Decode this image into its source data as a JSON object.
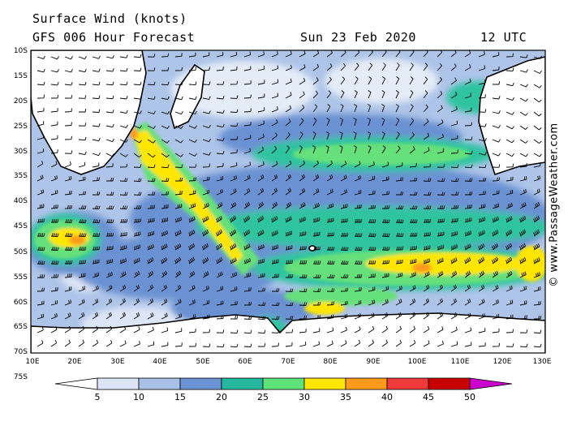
{
  "header": {
    "title": "Surface Wind (knots)",
    "model": "GFS 006 Hour Forecast",
    "date": "Sun 23 Feb 2020",
    "time": "12 UTC"
  },
  "credit": "© www.PassageWeather.com",
  "lat_labels": [
    "10S",
    "15S",
    "20S",
    "25S",
    "30S",
    "35S",
    "40S",
    "45S",
    "50S",
    "55S",
    "60S",
    "65S",
    "70S",
    "75S"
  ],
  "lon_labels": [
    "10E",
    "20E",
    "30E",
    "40E",
    "50E",
    "60E",
    "70E",
    "80E",
    "90E",
    "100E",
    "110E",
    "120E",
    "130E"
  ],
  "colorbar": {
    "labels": [
      "5",
      "10",
      "15",
      "20",
      "25",
      "30",
      "35",
      "40",
      "45",
      "50"
    ],
    "colors": [
      "#ffffff",
      "#dde6f6",
      "#a9c1e6",
      "#6b92d2",
      "#26b89e",
      "#5fe27a",
      "#ffe600",
      "#ff9a1a",
      "#ee3a3a",
      "#c80000",
      "#cc00cc"
    ]
  },
  "map_colors": {
    "calm": "#e8eef8",
    "light": "#aec4e8",
    "moderate": "#6b92d2",
    "fresh": "#2ec4a0",
    "strong": "#66e07a",
    "gale": "#ffe600",
    "storm": "#ff9a1a",
    "land": "#ffffff",
    "coast": "#000000"
  }
}
